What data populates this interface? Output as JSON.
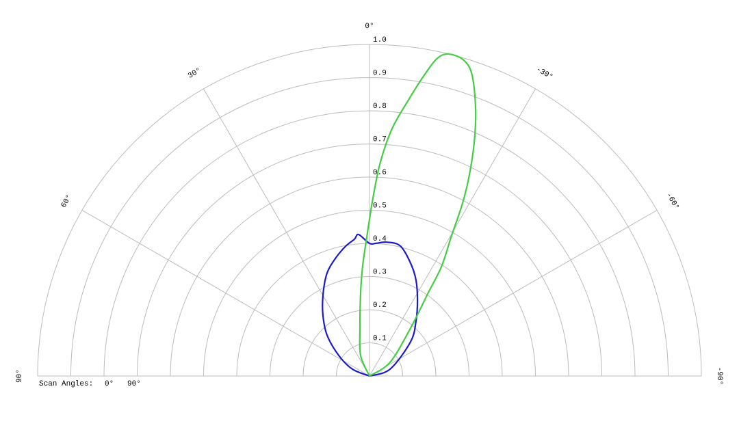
{
  "chart_data": {
    "type": "polar",
    "orientation": "semicircle, 0° at top, positive angles to the left",
    "rlim": [
      0,
      1.0
    ],
    "radial_ticks": [
      "0.1",
      "0.2",
      "0.3",
      "0.4",
      "0.5",
      "0.6",
      "0.7",
      "0.8",
      "0.9",
      "1.0"
    ],
    "angle_ticks": [
      {
        "angle": 0,
        "label": "0°"
      },
      {
        "angle": 30,
        "label": "30°"
      },
      {
        "angle": -30,
        "label": "-30°"
      },
      {
        "angle": 60,
        "label": "60°"
      },
      {
        "angle": -60,
        "label": "-60°"
      },
      {
        "angle": 90,
        "label": "90°"
      },
      {
        "angle": -90,
        "label": "-90°"
      }
    ],
    "grid": true,
    "legend": {
      "title": "Scan Angles:",
      "placement": "bottom-left"
    },
    "series": [
      {
        "name": "0°",
        "color": "#1a1acc",
        "points": [
          [
            -90,
            0
          ],
          [
            -71.6,
            0.065
          ],
          [
            -50.2,
            0.161
          ],
          [
            -40.4,
            0.216
          ],
          [
            -32.5,
            0.269
          ],
          [
            -25.9,
            0.321
          ],
          [
            -20.0,
            0.362
          ],
          [
            -13.3,
            0.403
          ],
          [
            -7.3,
            0.407
          ],
          [
            -3.0,
            0.401
          ],
          [
            0,
            0.4
          ],
          [
            4.4,
            0.428
          ],
          [
            6.3,
            0.415
          ],
          [
            10.4,
            0.398
          ],
          [
            16.2,
            0.369
          ],
          [
            22.5,
            0.335
          ],
          [
            29.5,
            0.284
          ],
          [
            37.1,
            0.233
          ],
          [
            46.0,
            0.178
          ],
          [
            56.3,
            0.111
          ],
          [
            68.2,
            0.055
          ],
          [
            90,
            0
          ]
        ]
      },
      {
        "name": "90°",
        "color": "#44cc44",
        "points": [
          [
            90,
            0
          ],
          [
            23.4,
            0.067
          ],
          [
            11.3,
            0.147
          ],
          [
            6.2,
            0.249
          ],
          [
            3.6,
            0.331
          ],
          [
            0.8,
            0.433
          ],
          [
            -1.1,
            0.536
          ],
          [
            -2.8,
            0.64
          ],
          [
            -5.1,
            0.745
          ],
          [
            -7.8,
            0.833
          ],
          [
            -10.3,
            0.922
          ],
          [
            -12.1,
            0.981
          ],
          [
            -13.9,
            1.0
          ],
          [
            -16.6,
            0.994
          ],
          [
            -18.8,
            0.959
          ],
          [
            -21.7,
            0.865
          ],
          [
            -24.2,
            0.769
          ],
          [
            -26.6,
            0.668
          ],
          [
            -28.4,
            0.586
          ],
          [
            -30.3,
            0.49
          ],
          [
            -33.3,
            0.395
          ],
          [
            -35.3,
            0.303
          ],
          [
            -40.6,
            0.19
          ],
          [
            -56.3,
            0.074
          ],
          [
            -90,
            0
          ]
        ]
      }
    ]
  }
}
